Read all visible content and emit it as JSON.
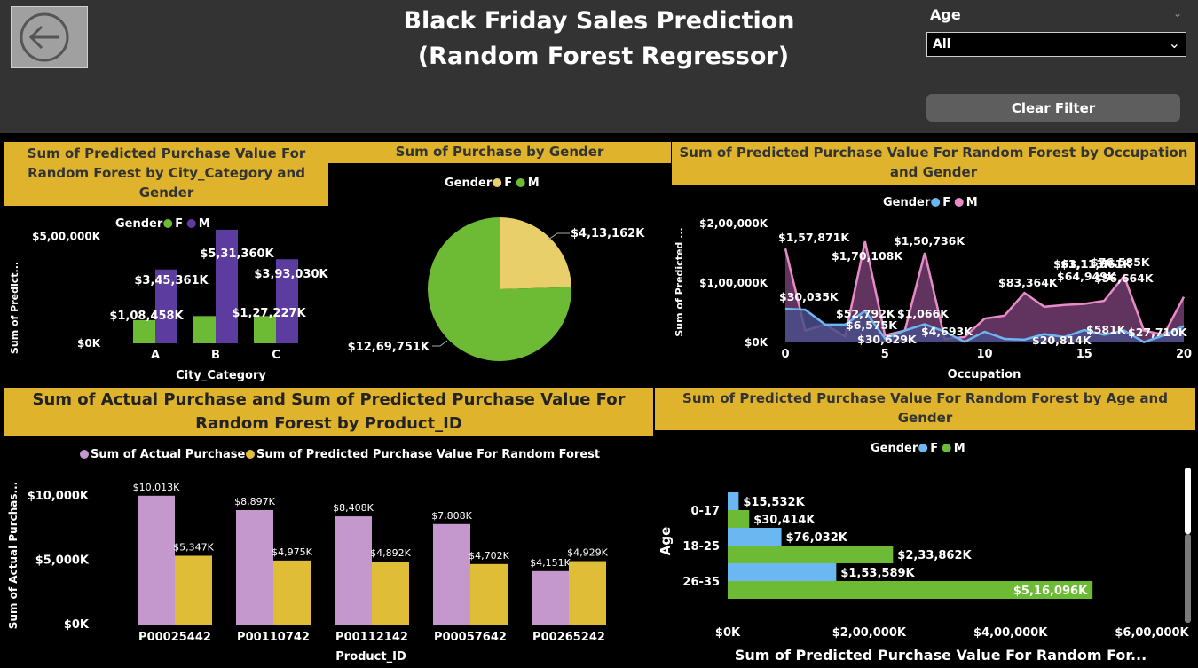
{
  "header": {
    "title_line1": "Black Friday Sales Prediction",
    "title_line2": "(Random Forest Regressor)",
    "back_icon": "back-arrow-icon"
  },
  "filter": {
    "label": "Age",
    "selected": "All",
    "clear_label": "Clear Filter"
  },
  "colors": {
    "gold": "#dfb42c",
    "green": "#6dba35",
    "purple": "#5c3c9e",
    "yellow": "#e8cf6a",
    "pink": "#e88cc8",
    "blue": "#6ab7f2",
    "lavender": "#c498cc",
    "mustard": "#dfbd36"
  },
  "chart_data": [
    {
      "type": "bar",
      "title": "Sum of Predicted Purchase Value For Random Forest by City_Category and Gender",
      "legend_title": "Gender",
      "xlabel": "City_Category",
      "ylabel": "Sum of Predict...",
      "categories": [
        "A",
        "B",
        "C"
      ],
      "series": [
        {
          "name": "F",
          "values": [
            108458,
            127227,
            127227
          ],
          "labels": [
            "$1,08,458K",
            "",
            "$1,27,227K"
          ]
        },
        {
          "name": "M",
          "values": [
            345361,
            531360,
            393030
          ],
          "labels": [
            "$3,45,361K",
            "$5,31,360K",
            "$3,93,030K"
          ]
        }
      ],
      "ytick_labels": [
        "$0K",
        "$5,00,000K"
      ],
      "ylim": [
        0,
        560000
      ]
    },
    {
      "type": "pie",
      "title": "Sum of Purchase by Gender",
      "legend_title": "Gender",
      "slices": [
        {
          "name": "F",
          "value": 413162,
          "label": "$4,13,162K"
        },
        {
          "name": "M",
          "value": 1269751,
          "label": "$12,69,751K"
        }
      ]
    },
    {
      "type": "area",
      "title": "Sum of Predicted Purchase Value For Random Forest by Occupation and Gender",
      "legend_title": "Gender",
      "xlabel": "Occupation",
      "ylabel": "Sum of Predicted ...",
      "x": [
        0,
        1,
        2,
        3,
        4,
        5,
        6,
        7,
        8,
        9,
        10,
        11,
        12,
        13,
        14,
        15,
        16,
        17,
        18,
        19,
        20
      ],
      "series": [
        {
          "name": "F",
          "values": [
            56664,
            55000,
            30035,
            30035,
            52792,
            6575,
            20000,
            30629,
            18000,
            1066,
            18000,
            6000,
            4693,
            14000,
            9000,
            20814,
            13000,
            20000,
            581,
            12000,
            27710
          ]
        },
        {
          "name": "M",
          "values": [
            157871,
            20000,
            30000,
            10000,
            170108,
            12000,
            20000,
            150736,
            6000,
            9000,
            40000,
            45000,
            83364,
            60000,
            63113,
            64949,
            70000,
            111961,
            20000,
            13000,
            76585
          ]
        }
      ],
      "point_labels": [
        {
          "text": "$1,57,871K",
          "x": 0,
          "series": "M"
        },
        {
          "text": "$1,70,108K",
          "x": 4,
          "series": "M"
        },
        {
          "text": "$1,50,736K",
          "x": 7,
          "series": "M"
        },
        {
          "text": "$83,364K",
          "x": 12,
          "series": "M"
        },
        {
          "text": "$63,113K",
          "x": 14,
          "series": "M"
        },
        {
          "text": "$64,949K",
          "x": 15,
          "series": "M"
        },
        {
          "text": "$1,11,961K",
          "x": 17,
          "series": "M"
        },
        {
          "text": "$76,585K",
          "x": 20,
          "series": "M"
        },
        {
          "text": "$56,664K",
          "x": 0,
          "series": "F"
        },
        {
          "text": "$30,035K",
          "x": 2,
          "series": "F"
        },
        {
          "text": "$52,792K",
          "x": 4,
          "series": "F"
        },
        {
          "text": "$6,575K",
          "x": 5,
          "series": "F"
        },
        {
          "text": "$30,629K",
          "x": 7,
          "series": "F"
        },
        {
          "text": "$1,066K",
          "x": 9,
          "series": "F"
        },
        {
          "text": "$4,693K",
          "x": 12,
          "series": "F"
        },
        {
          "text": "$20,814K",
          "x": 15,
          "series": "F"
        },
        {
          "text": "$581K",
          "x": 18,
          "series": "F"
        },
        {
          "text": "$27,710K",
          "x": 20,
          "series": "F"
        }
      ],
      "xticks": [
        0,
        5,
        10,
        15,
        20
      ],
      "ytick_labels": [
        "$0K",
        "$1,00,000K",
        "$2,00,000K"
      ],
      "ylim": [
        0,
        200000
      ]
    },
    {
      "type": "bar",
      "title": "Sum of Actual Purchase and Sum of Predicted Purchase Value For Random Forest by Product_ID",
      "xlabel": "Product_ID",
      "ylabel": "Sum of Actual Purchas...",
      "categories": [
        "P00025442",
        "P00110742",
        "P00112142",
        "P00057642",
        "P00265242"
      ],
      "series": [
        {
          "name": "Sum of Actual Purchase",
          "values": [
            10013,
            8897,
            8408,
            7808,
            4151
          ],
          "labels": [
            "$10,013K",
            "$8,897K",
            "$8,408K",
            "$7,808K",
            "$4,151K"
          ]
        },
        {
          "name": "Sum of Predicted Purchase Value For Random Forest",
          "values": [
            5347,
            4975,
            4892,
            4702,
            4929
          ],
          "labels": [
            "$5,347K",
            "$4,975K",
            "$4,892K",
            "$4,702K",
            "$4,929K"
          ]
        }
      ],
      "ytick_labels": [
        "$0K",
        "$5,000K",
        "$10,000K"
      ],
      "ylim": [
        0,
        10000
      ]
    },
    {
      "type": "bar",
      "orientation": "horizontal",
      "title": "Sum of Predicted Purchase Value For Random Forest by Age and Gender",
      "legend_title": "Gender",
      "xlabel": "Sum of Predicted Purchase Value For Random For...",
      "ylabel": "Age",
      "categories": [
        "0-17",
        "18-25",
        "26-35"
      ],
      "series": [
        {
          "name": "F",
          "values": [
            15532,
            76032,
            153589
          ],
          "labels": [
            "$15,532K",
            "$76,032K",
            "$1,53,589K"
          ]
        },
        {
          "name": "M",
          "values": [
            30414,
            233862,
            516096
          ],
          "labels": [
            "$30,414K",
            "$2,33,862K",
            "$5,16,096K"
          ]
        }
      ],
      "xtick_labels": [
        "$0K",
        "$2,00,000K",
        "$4,00,000K",
        "$6,00,000K"
      ],
      "xlim": [
        0,
        600000
      ]
    }
  ]
}
